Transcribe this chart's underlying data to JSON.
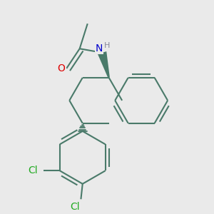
{
  "bg_color": "#eaeaea",
  "bond_color": "#4a7a6a",
  "bond_width": 1.5,
  "atom_colors": {
    "O": "#dd0000",
    "N": "#0000cc",
    "H": "#888899",
    "Cl": "#22aa22",
    "C": "#4a7a6a"
  },
  "font_size_atom": 10,
  "font_size_small": 8,
  "font_size_Cl": 10
}
